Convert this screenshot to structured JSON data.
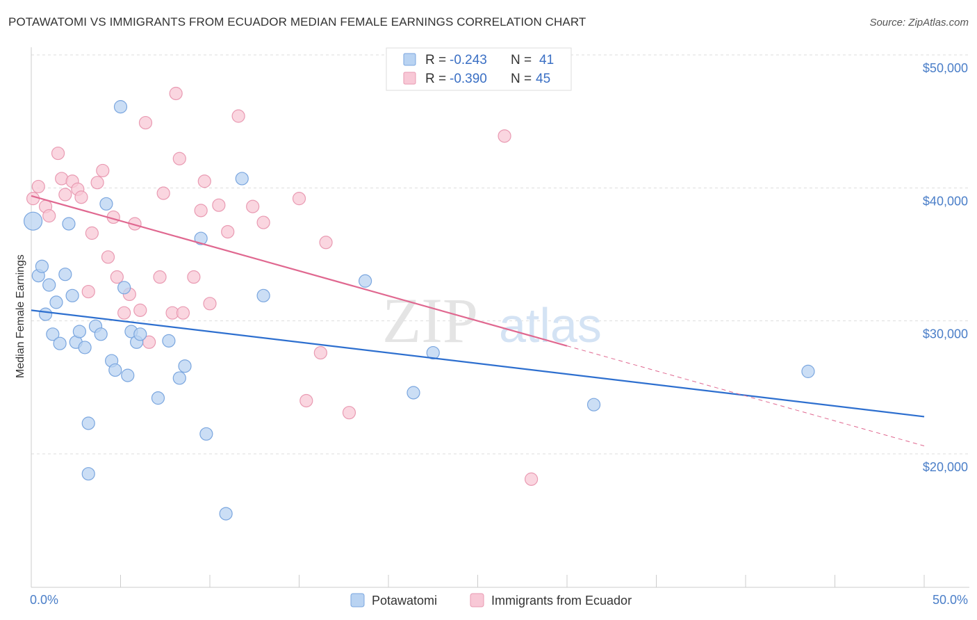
{
  "title": "POTAWATOMI VS IMMIGRANTS FROM ECUADOR MEDIAN FEMALE EARNINGS CORRELATION CHART",
  "source": "Source: ZipAtlas.com",
  "watermark": {
    "zip": "ZIP",
    "atlas": "atlas"
  },
  "colors": {
    "blue_fill": "#b9d3f2",
    "blue_stroke": "#7aa6df",
    "blue_line": "#2d6fcf",
    "pink_fill": "#f8c8d6",
    "pink_stroke": "#e99ab2",
    "pink_line": "#e06890",
    "grid": "#dddddd",
    "axis_label": "#4a7ec8"
  },
  "legend": {
    "rows": [
      {
        "r_label": "R =",
        "r_value": "-0.243",
        "n_label": "N =",
        "n_value": "41"
      },
      {
        "r_label": "R =",
        "r_value": "-0.390",
        "n_label": "N =",
        "n_value": "45"
      }
    ]
  },
  "chart_data": {
    "type": "scatter",
    "title": "POTAWATOMI VS IMMIGRANTS FROM ECUADOR MEDIAN FEMALE EARNINGS CORRELATION CHART",
    "xlabel": "",
    "ylabel": "Median Female Earnings",
    "xlim": [
      0,
      50
    ],
    "ylim": [
      10000,
      51000
    ],
    "x_tick_labels": [
      "0.0%",
      "50.0%"
    ],
    "y_ticks": [
      20000,
      30000,
      40000,
      50000
    ],
    "y_tick_labels": [
      "$20,000",
      "$30,000",
      "$40,000",
      "$50,000"
    ],
    "grid": true,
    "legend_position": "top-center",
    "series": [
      {
        "name": "Potawatomi",
        "trend": {
          "x0": 0,
          "y0": 30800,
          "x1": 50,
          "y1": 22800,
          "dashed_from": null
        },
        "points": [
          [
            0.1,
            37500
          ],
          [
            0.4,
            33400
          ],
          [
            0.6,
            34100
          ],
          [
            0.8,
            30500
          ],
          [
            1.0,
            32700
          ],
          [
            1.2,
            29000
          ],
          [
            1.4,
            31400
          ],
          [
            1.6,
            28300
          ],
          [
            1.9,
            33500
          ],
          [
            2.1,
            37300
          ],
          [
            2.3,
            31900
          ],
          [
            2.5,
            28400
          ],
          [
            2.7,
            29200
          ],
          [
            3.0,
            28000
          ],
          [
            3.2,
            22300
          ],
          [
            3.6,
            29600
          ],
          [
            3.9,
            29000
          ],
          [
            4.2,
            38800
          ],
          [
            4.5,
            27000
          ],
          [
            4.7,
            26300
          ],
          [
            5.0,
            46100
          ],
          [
            5.2,
            32500
          ],
          [
            5.4,
            25900
          ],
          [
            5.6,
            29200
          ],
          [
            5.9,
            28400
          ],
          [
            6.1,
            29000
          ],
          [
            7.1,
            24200
          ],
          [
            7.7,
            28500
          ],
          [
            8.3,
            25700
          ],
          [
            8.6,
            26600
          ],
          [
            9.5,
            36200
          ],
          [
            9.8,
            21500
          ],
          [
            10.9,
            15500
          ],
          [
            11.8,
            40700
          ],
          [
            13.0,
            31900
          ],
          [
            18.7,
            33000
          ],
          [
            21.4,
            24600
          ],
          [
            22.5,
            27600
          ],
          [
            31.5,
            23700
          ],
          [
            43.5,
            26200
          ],
          [
            3.2,
            18500
          ]
        ]
      },
      {
        "name": "Immigrants from Ecuador",
        "trend": {
          "x0": 0,
          "y0": 39400,
          "x1": 50,
          "y1": 20600,
          "dashed_from": 30
        },
        "points": [
          [
            0.1,
            39200
          ],
          [
            0.4,
            40100
          ],
          [
            0.8,
            38600
          ],
          [
            1.0,
            37900
          ],
          [
            1.5,
            42600
          ],
          [
            1.7,
            40700
          ],
          [
            1.9,
            39500
          ],
          [
            2.3,
            40500
          ],
          [
            2.6,
            39900
          ],
          [
            2.8,
            39300
          ],
          [
            3.2,
            32200
          ],
          [
            3.4,
            36600
          ],
          [
            3.7,
            40400
          ],
          [
            4.0,
            41300
          ],
          [
            4.3,
            34800
          ],
          [
            4.6,
            37800
          ],
          [
            4.8,
            33300
          ],
          [
            5.2,
            30600
          ],
          [
            5.5,
            32000
          ],
          [
            5.8,
            37300
          ],
          [
            6.1,
            30800
          ],
          [
            6.4,
            44900
          ],
          [
            6.6,
            28400
          ],
          [
            7.2,
            33300
          ],
          [
            7.4,
            39600
          ],
          [
            7.9,
            30600
          ],
          [
            8.1,
            47100
          ],
          [
            8.3,
            42200
          ],
          [
            8.5,
            30600
          ],
          [
            9.1,
            33300
          ],
          [
            9.5,
            38300
          ],
          [
            9.7,
            40500
          ],
          [
            10.0,
            31300
          ],
          [
            10.5,
            38700
          ],
          [
            11.0,
            36700
          ],
          [
            11.6,
            45400
          ],
          [
            12.4,
            38600
          ],
          [
            13.0,
            37400
          ],
          [
            15.0,
            39200
          ],
          [
            15.4,
            24000
          ],
          [
            16.2,
            27600
          ],
          [
            16.5,
            35900
          ],
          [
            17.8,
            23100
          ],
          [
            26.5,
            43900
          ],
          [
            28.0,
            18100
          ]
        ]
      }
    ]
  }
}
